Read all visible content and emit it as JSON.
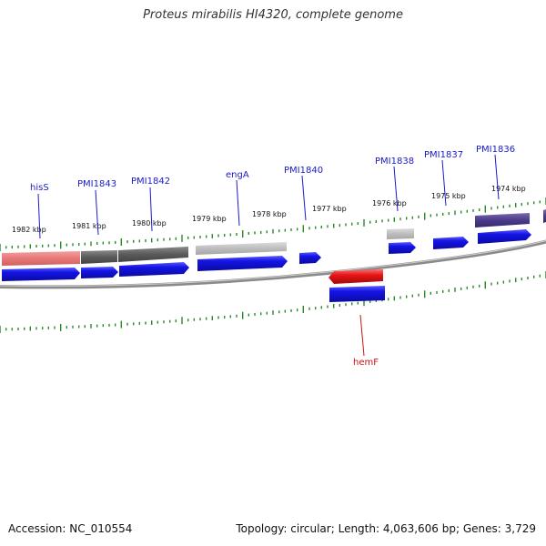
{
  "title": "Proteus mirabilis HI4320, complete genome",
  "footer": {
    "accession_label": "Accession:",
    "accession": "NC_010554",
    "topology_label": "Topology:",
    "topology": "circular",
    "length_label": "Length:",
    "length": "4,063,606 bp",
    "genes_label": "Genes:",
    "genes": "3,729"
  },
  "colors": {
    "backbone": "#8a8a8a",
    "tick": "#2a8a2a",
    "label_blue": "#1a1acc",
    "label_red": "#cc1111",
    "cds": "#1414e6",
    "hemF": "#e61414"
  },
  "kbp_labels": [
    "1982 kbp",
    "1981 kbp",
    "1980 kbp",
    "1979 kbp",
    "1978 kbp",
    "1977 kbp",
    "1976 kbp",
    "1975 kbp",
    "1974 kbp"
  ],
  "gene_labels": [
    {
      "name": "hisS",
      "color": "#1a1acc"
    },
    {
      "name": "PMI1843",
      "color": "#1a1acc"
    },
    {
      "name": "PMI1842",
      "color": "#1a1acc"
    },
    {
      "name": "engA",
      "color": "#1a1acc"
    },
    {
      "name": "PMI1840",
      "color": "#1a1acc"
    },
    {
      "name": "PMI1838",
      "color": "#1a1acc"
    },
    {
      "name": "PMI1837",
      "color": "#1a1acc"
    },
    {
      "name": "PMI1836",
      "color": "#1a1acc"
    },
    {
      "name": "hemF",
      "color": "#cc1111"
    }
  ]
}
